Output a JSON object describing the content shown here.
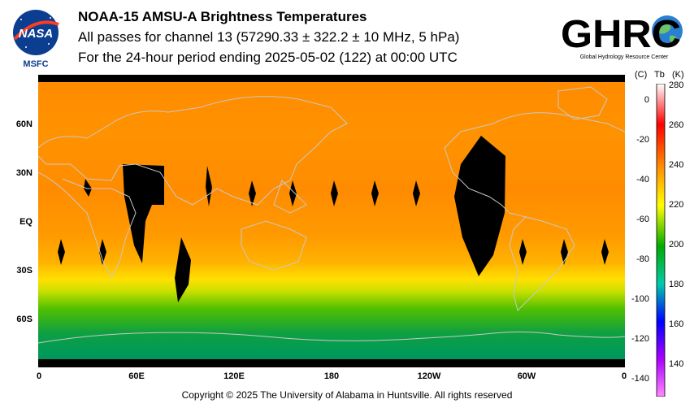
{
  "header": {
    "title": "NOAA-15 AMSU-A Brightness Temperatures",
    "subtitle": "All passes for channel 13 (57290.33 ± 322.2 ± 10 MHz, 5 hPa)",
    "period": "For the 24-hour period ending 2025-05-02 (122) at 00:00 UTC"
  },
  "logos": {
    "nasa_text": "NASA",
    "nasa_sub": "MSFC",
    "ghrc_text": "GHRC",
    "ghrc_sub": "Global Hydrology Resource Center"
  },
  "map": {
    "lat_labels": [
      "60N",
      "30N",
      "EQ",
      "30S",
      "60S"
    ],
    "lon_labels": [
      "0",
      "60E",
      "120E",
      "180",
      "120W",
      "60W",
      "0"
    ]
  },
  "colorbar": {
    "unit_c": "(C)",
    "unit_label": "Tb",
    "unit_k": "(K)",
    "kelvin_ticks": [
      "280",
      "260",
      "240",
      "220",
      "200",
      "180",
      "160",
      "140"
    ],
    "celsius_ticks": [
      "0",
      "-20",
      "-40",
      "-60",
      "-80",
      "-100",
      "-120",
      "-140"
    ],
    "colors": [
      "#ffffff",
      "#ff0000",
      "#ff8800",
      "#ffff00",
      "#00aa00",
      "#00ccaa",
      "#0000ff",
      "#aa00ff",
      "#ff88ff"
    ]
  },
  "footer": {
    "copyright": "Copyright © 2025 The University of Alabama in Huntsville.  All rights reserved"
  }
}
